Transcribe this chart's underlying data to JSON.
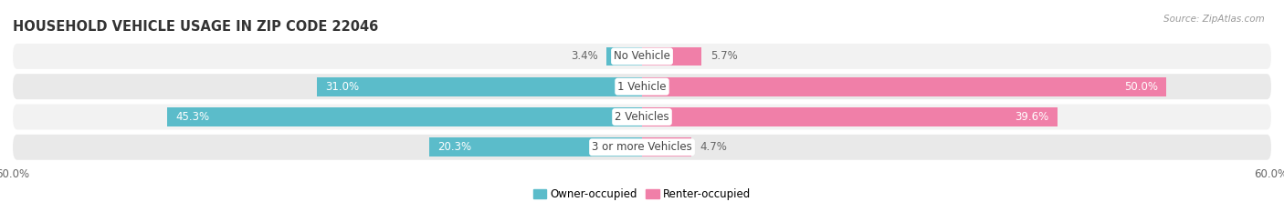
{
  "title": "HOUSEHOLD VEHICLE USAGE IN ZIP CODE 22046",
  "source": "Source: ZipAtlas.com",
  "categories": [
    "No Vehicle",
    "1 Vehicle",
    "2 Vehicles",
    "3 or more Vehicles"
  ],
  "owner_values": [
    3.4,
    31.0,
    45.3,
    20.3
  ],
  "renter_values": [
    5.7,
    50.0,
    39.6,
    4.7
  ],
  "owner_color": "#5bbcca",
  "renter_color": "#f07fa8",
  "row_colors": [
    "#f0f0f0",
    "#e8e8e8",
    "#f0f0f0",
    "#e8e8e8"
  ],
  "xlim": [
    -60,
    60
  ],
  "legend_owner": "Owner-occupied",
  "legend_renter": "Renter-occupied",
  "title_fontsize": 10.5,
  "label_fontsize": 8.5,
  "bar_height": 0.62,
  "fig_width": 14.06,
  "fig_height": 2.33,
  "dpi": 100
}
